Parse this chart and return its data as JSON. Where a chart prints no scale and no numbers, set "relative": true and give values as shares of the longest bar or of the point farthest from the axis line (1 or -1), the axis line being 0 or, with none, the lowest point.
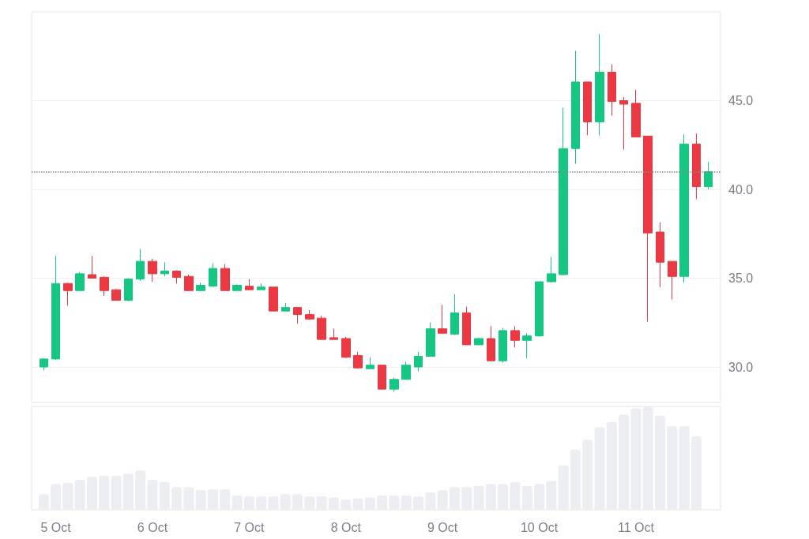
{
  "chart_data": [
    {
      "type": "candlestick",
      "x": [
        "--10-04T21:00",
        "--10-05T00:00",
        "--10-05T03:00",
        "--10-05T06:00",
        "--10-05T09:00",
        "--10-05T12:00",
        "--10-05T15:00",
        "--10-05T18:00",
        "--10-05T21:00",
        "--10-06T00:00",
        "--10-06T03:00",
        "--10-06T06:00",
        "--10-06T09:00",
        "--10-06T12:00",
        "--10-06T15:00",
        "--10-06T18:00",
        "--10-06T21:00",
        "--10-07T00:00",
        "--10-07T03:00",
        "--10-07T06:00",
        "--10-07T09:00",
        "--10-07T12:00",
        "--10-07T15:00",
        "--10-07T18:00",
        "--10-07T21:00",
        "--10-08T00:00",
        "--10-08T03:00",
        "--10-08T06:00",
        "--10-08T09:00",
        "--10-08T12:00",
        "--10-08T15:00",
        "--10-08T18:00",
        "--10-08T21:00",
        "--10-09T00:00",
        "--10-09T03:00",
        "--10-09T06:00",
        "--10-09T09:00",
        "--10-09T12:00",
        "--10-09T15:00",
        "--10-09T18:00",
        "--10-09T21:00",
        "--10-10T00:00",
        "--10-10T03:00",
        "--10-10T06:00",
        "--10-10T09:00",
        "--10-10T12:00",
        "--10-10T15:00",
        "--10-10T18:00",
        "--10-10T21:00",
        "--10-11T00:00",
        "--10-11T03:00",
        "--10-11T06:00",
        "--10-11T09:00",
        "--10-11T12:00",
        "--10-11T15:00",
        "--10-11T18:00"
      ],
      "ohlc": [
        [
          30.0,
          30.5,
          29.8,
          30.45
        ],
        [
          30.45,
          36.25,
          30.4,
          34.7
        ],
        [
          34.7,
          34.75,
          33.45,
          34.3
        ],
        [
          34.3,
          35.35,
          34.3,
          35.25
        ],
        [
          35.2,
          36.25,
          35.0,
          35.0
        ],
        [
          35.05,
          35.1,
          34.0,
          34.3
        ],
        [
          34.35,
          34.4,
          33.75,
          33.75
        ],
        [
          33.75,
          35.0,
          33.7,
          34.95
        ],
        [
          34.95,
          36.65,
          34.85,
          35.95
        ],
        [
          35.95,
          36.1,
          34.8,
          35.25
        ],
        [
          35.25,
          35.9,
          35.1,
          35.4
        ],
        [
          35.4,
          35.45,
          34.7,
          35.05
        ],
        [
          35.1,
          35.2,
          34.3,
          34.3
        ],
        [
          34.3,
          34.75,
          34.3,
          34.6
        ],
        [
          34.55,
          35.85,
          34.5,
          35.55
        ],
        [
          35.55,
          35.8,
          34.3,
          34.3
        ],
        [
          34.3,
          34.65,
          34.3,
          34.6
        ],
        [
          34.55,
          34.95,
          34.35,
          34.35
        ],
        [
          34.35,
          34.7,
          34.35,
          34.5
        ],
        [
          34.5,
          34.5,
          33.15,
          33.15
        ],
        [
          33.15,
          33.6,
          33.15,
          33.35
        ],
        [
          33.35,
          33.35,
          32.45,
          32.95
        ],
        [
          32.95,
          33.2,
          32.65,
          32.7
        ],
        [
          32.75,
          32.9,
          31.55,
          31.55
        ],
        [
          31.65,
          32.15,
          31.55,
          31.55
        ],
        [
          31.6,
          31.7,
          30.5,
          30.55
        ],
        [
          30.65,
          30.85,
          29.9,
          29.95
        ],
        [
          29.9,
          30.55,
          29.9,
          30.1
        ],
        [
          30.1,
          30.1,
          28.75,
          28.75
        ],
        [
          28.75,
          29.4,
          28.6,
          29.3
        ],
        [
          29.3,
          30.3,
          29.3,
          30.1
        ],
        [
          30.0,
          30.85,
          29.75,
          30.6
        ],
        [
          30.6,
          32.5,
          30.6,
          32.15
        ],
        [
          32.15,
          33.5,
          31.9,
          31.9
        ],
        [
          31.85,
          34.1,
          31.8,
          33.05
        ],
        [
          33.05,
          33.4,
          31.25,
          31.25
        ],
        [
          31.25,
          31.65,
          31.25,
          31.6
        ],
        [
          31.6,
          32.3,
          30.35,
          30.35
        ],
        [
          30.35,
          32.2,
          30.25,
          32.05
        ],
        [
          32.05,
          32.3,
          31.1,
          31.5
        ],
        [
          31.5,
          31.9,
          30.5,
          31.75
        ],
        [
          31.75,
          34.8,
          31.7,
          34.8
        ],
        [
          34.8,
          36.2,
          34.75,
          35.25
        ],
        [
          35.2,
          44.6,
          35.15,
          42.3
        ],
        [
          42.3,
          47.8,
          41.45,
          46.05
        ],
        [
          46.05,
          46.05,
          43.05,
          43.8
        ],
        [
          43.8,
          48.75,
          43.05,
          46.6
        ],
        [
          46.6,
          47.05,
          44.15,
          44.95
        ],
        [
          45.0,
          45.2,
          42.25,
          44.8
        ],
        [
          44.85,
          45.6,
          42.95,
          42.95
        ],
        [
          43.0,
          43.0,
          32.55,
          37.55
        ],
        [
          37.6,
          38.15,
          34.5,
          35.9
        ],
        [
          35.95,
          35.95,
          33.8,
          35.1
        ],
        [
          35.1,
          43.1,
          34.75,
          42.55
        ],
        [
          42.55,
          43.15,
          39.45,
          40.15
        ],
        [
          40.15,
          41.55,
          40.0,
          41.0
        ]
      ],
      "colors": [
        "#16c784",
        "#16c784",
        "#ea3943",
        "#16c784",
        "#ea3943",
        "#ea3943",
        "#ea3943",
        "#16c784",
        "#16c784",
        "#ea3943",
        "#16c784",
        "#ea3943",
        "#ea3943",
        "#16c784",
        "#16c784",
        "#ea3943",
        "#16c784",
        "#ea3943",
        "#16c784",
        "#ea3943",
        "#16c784",
        "#ea3943",
        "#ea3943",
        "#ea3943",
        "#ea3943",
        "#ea3943",
        "#ea3943",
        "#16c784",
        "#ea3943",
        "#16c784",
        "#16c784",
        "#16c784",
        "#16c784",
        "#ea3943",
        "#16c784",
        "#ea3943",
        "#16c784",
        "#ea3943",
        "#16c784",
        "#ea3943",
        "#16c784",
        "#16c784",
        "#16c784",
        "#16c784",
        "#16c784",
        "#ea3943",
        "#16c784",
        "#ea3943",
        "#ea3943",
        "#ea3943",
        "#ea3943",
        "#ea3943",
        "#ea3943",
        "#16c784",
        "#ea3943",
        "#16c784"
      ],
      "xlim": [
        "--10-04T18:00",
        "--10-11T21:00"
      ],
      "ylim": [
        28,
        50
      ],
      "yticks": [
        {
          "value": 30,
          "label": "30.0"
        },
        {
          "value": 35,
          "label": "35.0"
        },
        {
          "value": 40,
          "label": "40.0"
        },
        {
          "value": 45,
          "label": "45.0"
        }
      ],
      "grid": "y",
      "tick_labels": "y",
      "ref_lines": [
        {
          "axis": "y",
          "value": 41.0,
          "color": "#888888",
          "line_style": "dotted"
        }
      ]
    },
    {
      "type": "bar",
      "relative": true,
      "x": [
        "--10-04T21:00",
        "--10-05T00:00",
        "--10-05T03:00",
        "--10-05T06:00",
        "--10-05T09:00",
        "--10-05T12:00",
        "--10-05T15:00",
        "--10-05T18:00",
        "--10-05T21:00",
        "--10-06T00:00",
        "--10-06T03:00",
        "--10-06T06:00",
        "--10-06T09:00",
        "--10-06T12:00",
        "--10-06T15:00",
        "--10-06T18:00",
        "--10-06T21:00",
        "--10-07T00:00",
        "--10-07T03:00",
        "--10-07T06:00",
        "--10-07T09:00",
        "--10-07T12:00",
        "--10-07T15:00",
        "--10-07T18:00",
        "--10-07T21:00",
        "--10-08T00:00",
        "--10-08T03:00",
        "--10-08T06:00",
        "--10-08T09:00",
        "--10-08T12:00",
        "--10-08T15:00",
        "--10-08T18:00",
        "--10-08T21:00",
        "--10-09T00:00",
        "--10-09T03:00",
        "--10-09T06:00",
        "--10-09T09:00",
        "--10-09T12:00",
        "--10-09T15:00",
        "--10-09T18:00",
        "--10-09T21:00",
        "--10-10T00:00",
        "--10-10T03:00",
        "--10-10T06:00",
        "--10-10T09:00",
        "--10-10T12:00",
        "--10-10T15:00",
        "--10-10T18:00",
        "--10-10T21:00",
        "--10-11T00:00",
        "--10-11T03:00",
        "--10-11T06:00",
        "--10-11T09:00",
        "--10-11T12:00",
        "--10-11T15:00"
      ],
      "values": [
        0.15,
        0.25,
        0.26,
        0.29,
        0.32,
        0.33,
        0.33,
        0.35,
        0.38,
        0.29,
        0.27,
        0.22,
        0.22,
        0.19,
        0.2,
        0.2,
        0.14,
        0.13,
        0.13,
        0.13,
        0.15,
        0.15,
        0.13,
        0.13,
        0.12,
        0.1,
        0.11,
        0.12,
        0.14,
        0.14,
        0.14,
        0.13,
        0.17,
        0.19,
        0.22,
        0.22,
        0.23,
        0.25,
        0.25,
        0.27,
        0.23,
        0.25,
        0.28,
        0.43,
        0.58,
        0.68,
        0.8,
        0.85,
        0.92,
        0.98,
        1,
        0.91,
        0.81,
        0.81,
        0.71
      ],
      "color": "#eceef2",
      "xlim": [
        "--10-04T18:00",
        "--10-11T21:00"
      ],
      "xticks": [
        {
          "value": "--10-05",
          "label": "5 Oct"
        },
        {
          "value": "--10-06",
          "label": "6 Oct"
        },
        {
          "value": "--10-07",
          "label": "7 Oct"
        },
        {
          "value": "--10-08",
          "label": "8 Oct"
        },
        {
          "value": "--10-09",
          "label": "9 Oct"
        },
        {
          "value": "--10-10",
          "label": "10 Oct"
        },
        {
          "value": "--10-11",
          "label": "11 Oct"
        }
      ],
      "tick_labels": "x",
      "grid": false
    }
  ]
}
